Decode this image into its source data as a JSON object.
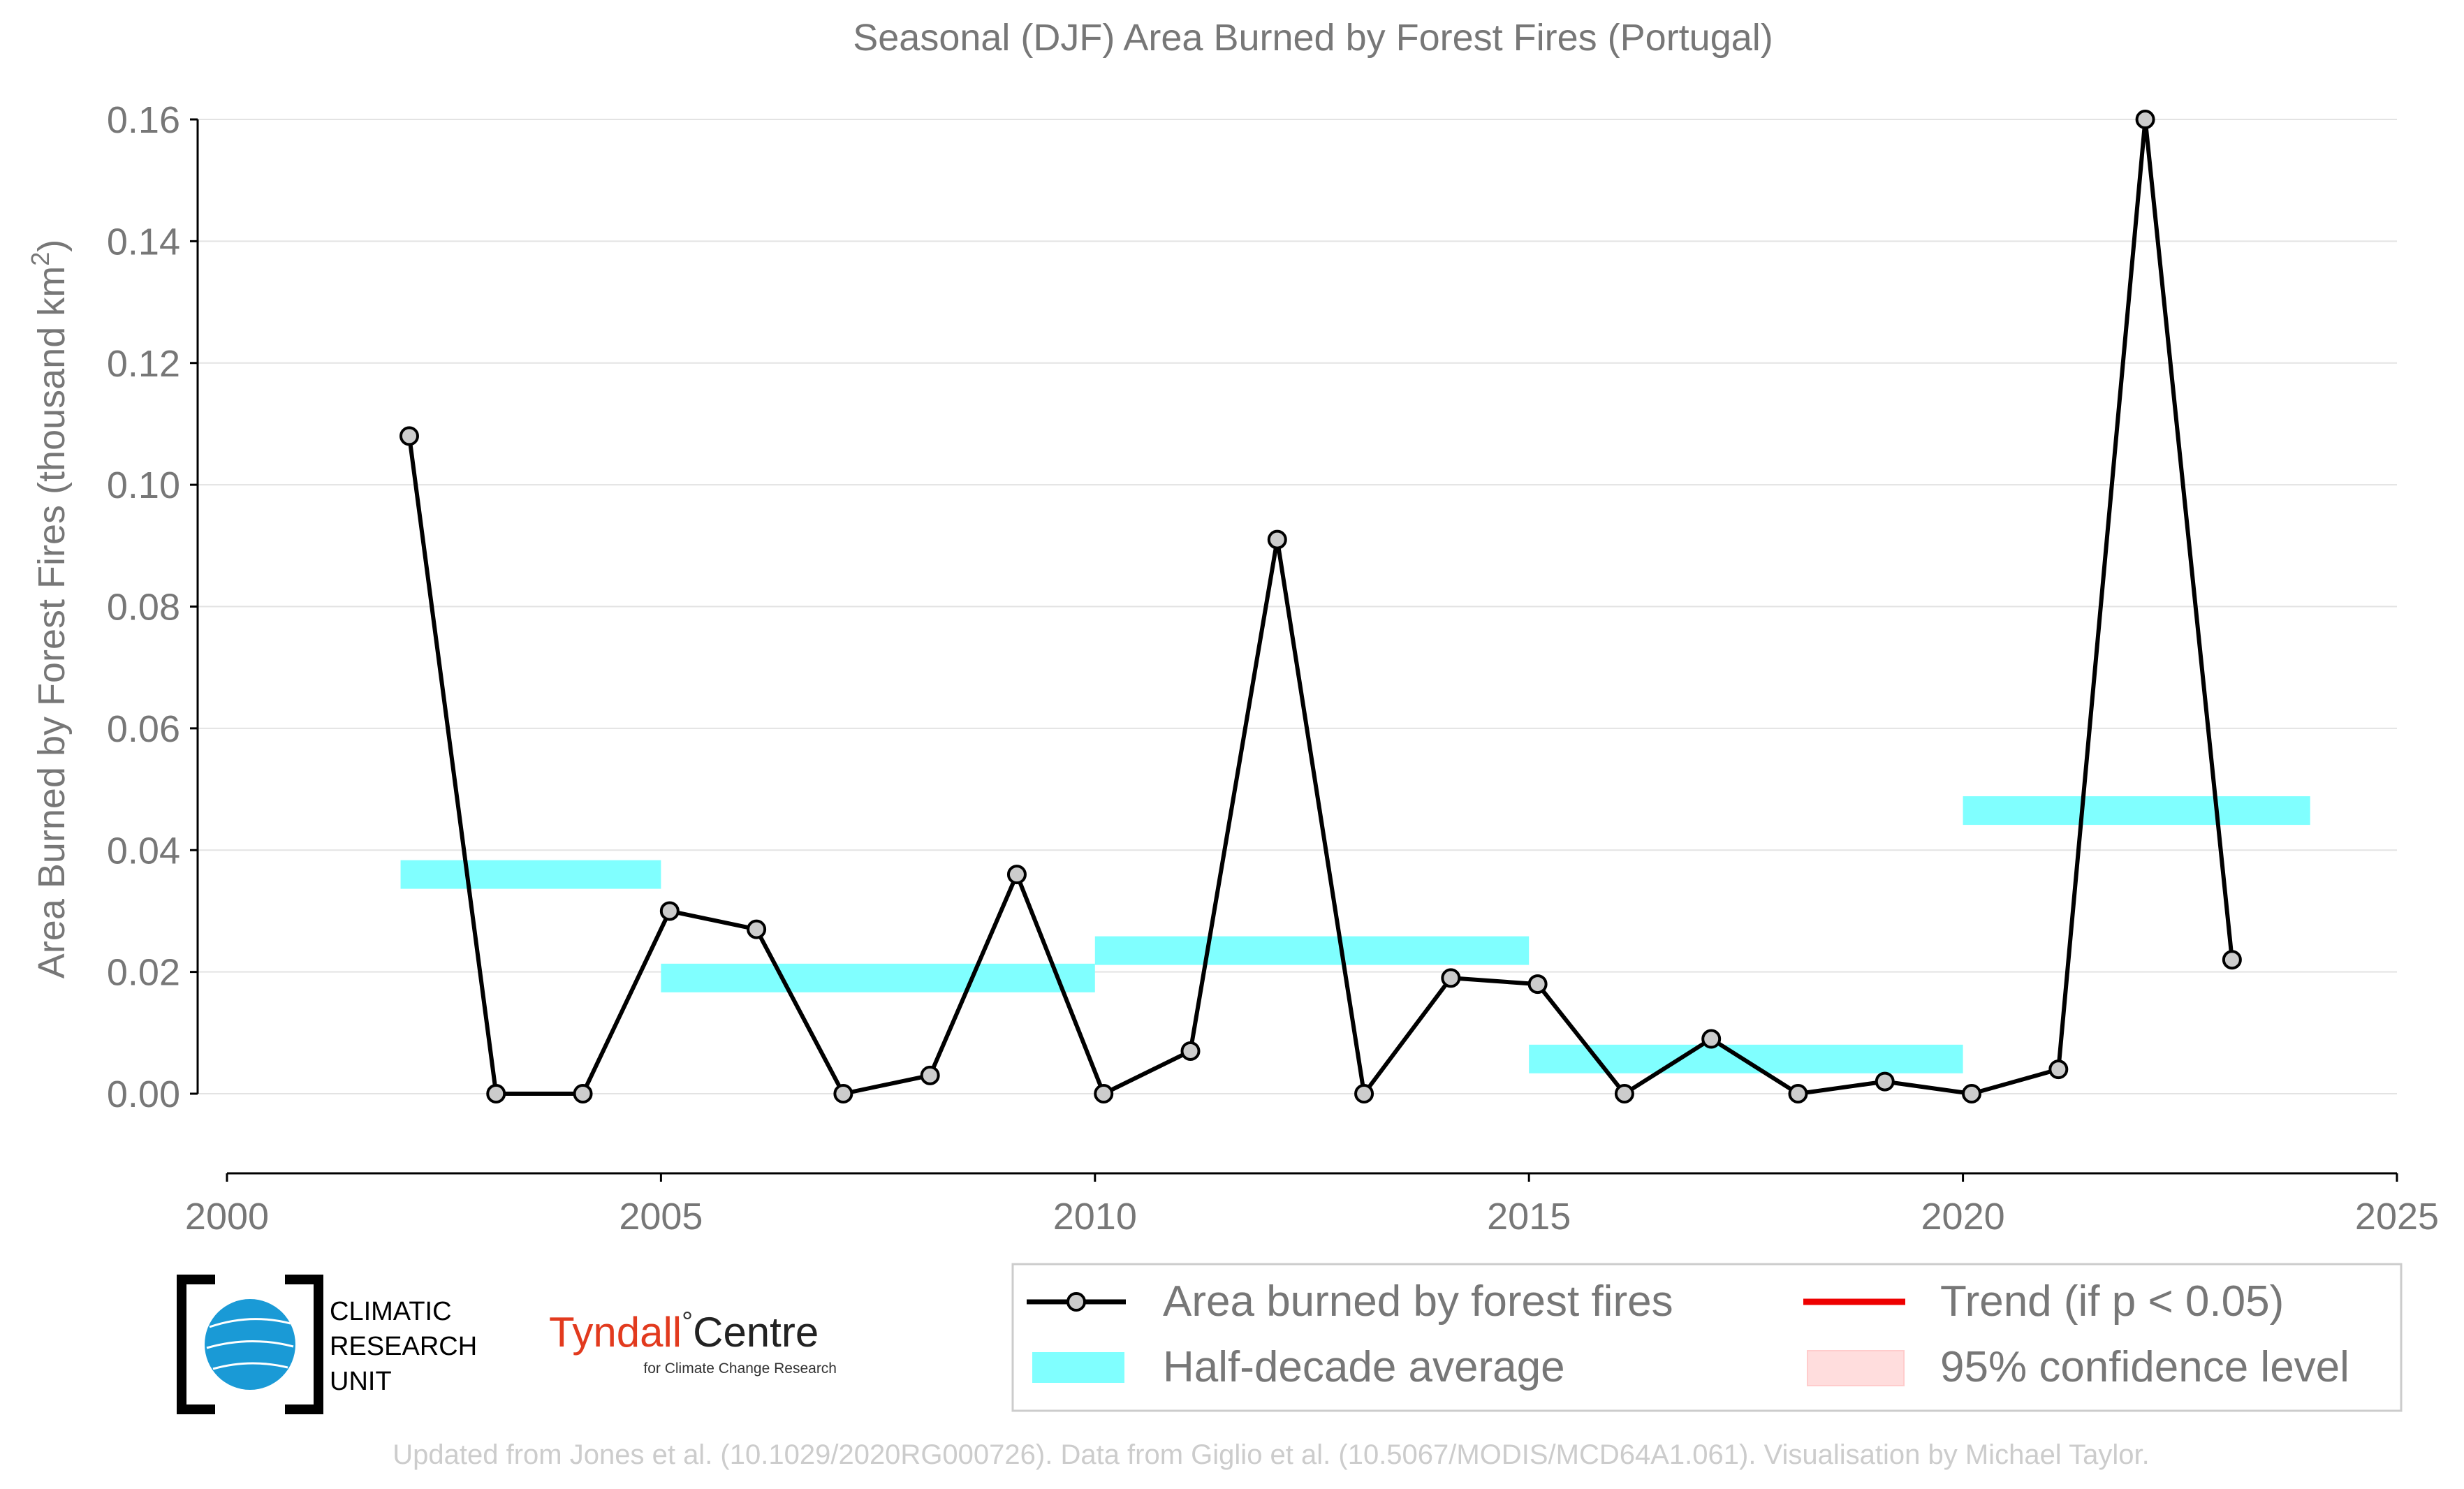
{
  "chart_data": {
    "type": "line",
    "title": "Seasonal (DJF) Area Burned by Forest Fires (Portugal)",
    "xlabel": "",
    "ylabel_main": "Area Burned by Forest Fires (thousand km",
    "ylabel_sup": "2",
    "ylabel_end": ")",
    "xlim": [
      2000,
      2025
    ],
    "ylim": [
      -0.013,
      0.16
    ],
    "x_ticks": [
      2000,
      2005,
      2010,
      2015,
      2020,
      2025
    ],
    "y_ticks": [
      0.0,
      0.02,
      0.04,
      0.06,
      0.08,
      0.1,
      0.12,
      0.14,
      0.16
    ],
    "y_tick_labels": [
      "0.00",
      "0.02",
      "0.04",
      "0.06",
      "0.08",
      "0.10",
      "0.12",
      "0.14",
      "0.16"
    ],
    "grid": "horizontal",
    "legend_position": "bottom-right",
    "series": [
      {
        "name": "Area burned by forest fires",
        "color": "#000000",
        "marker_fill": "#cccccc",
        "x": [
          2002.1,
          2003.1,
          2004.1,
          2005.1,
          2006.1,
          2007.1,
          2008.1,
          2009.1,
          2010.1,
          2011.1,
          2012.1,
          2013.1,
          2014.1,
          2015.1,
          2016.1,
          2017.1,
          2018.1,
          2019.1,
          2020.1,
          2021.1,
          2022.1,
          2023.1
        ],
        "y": [
          0.108,
          0.0,
          0.0,
          0.03,
          0.027,
          0.0,
          0.003,
          0.036,
          0.0,
          0.007,
          0.091,
          0.0,
          0.019,
          0.018,
          0.0,
          0.009,
          0.0,
          0.002,
          0.0,
          0.004,
          0.16,
          0.022
        ]
      }
    ],
    "half_decade_average": {
      "name": "Half-decade average",
      "color": "#80ffff",
      "segments": [
        {
          "x0": 2002,
          "x1": 2005,
          "y": 0.036
        },
        {
          "x0": 2005,
          "x1": 2010,
          "y": 0.019
        },
        {
          "x0": 2010,
          "x1": 2015,
          "y": 0.0235
        },
        {
          "x0": 2015,
          "x1": 2020,
          "y": 0.0057
        },
        {
          "x0": 2020,
          "x1": 2024,
          "y": 0.0465
        }
      ]
    },
    "trend": {
      "name": "Trend (if p < 0.05)",
      "color": "#ee0000"
    },
    "confidence": {
      "name": "95% confidence level",
      "color": "#ffdddd"
    }
  },
  "logos": {
    "cru_line1": "CLIMATIC",
    "cru_line2": "RESEARCH",
    "cru_line3": "UNIT",
    "tyndall_name": "Tyndall",
    "tyndall_degree": "°",
    "tyndall_centre": "Centre",
    "tyndall_subtitle": "for Climate Change Research"
  },
  "footer": "Updated from Jones et al. (10.1029/2020RG000726). Data from Giglio et al. (10.5067/MODIS/MCD64A1.061). Visualisation by Michael Taylor."
}
